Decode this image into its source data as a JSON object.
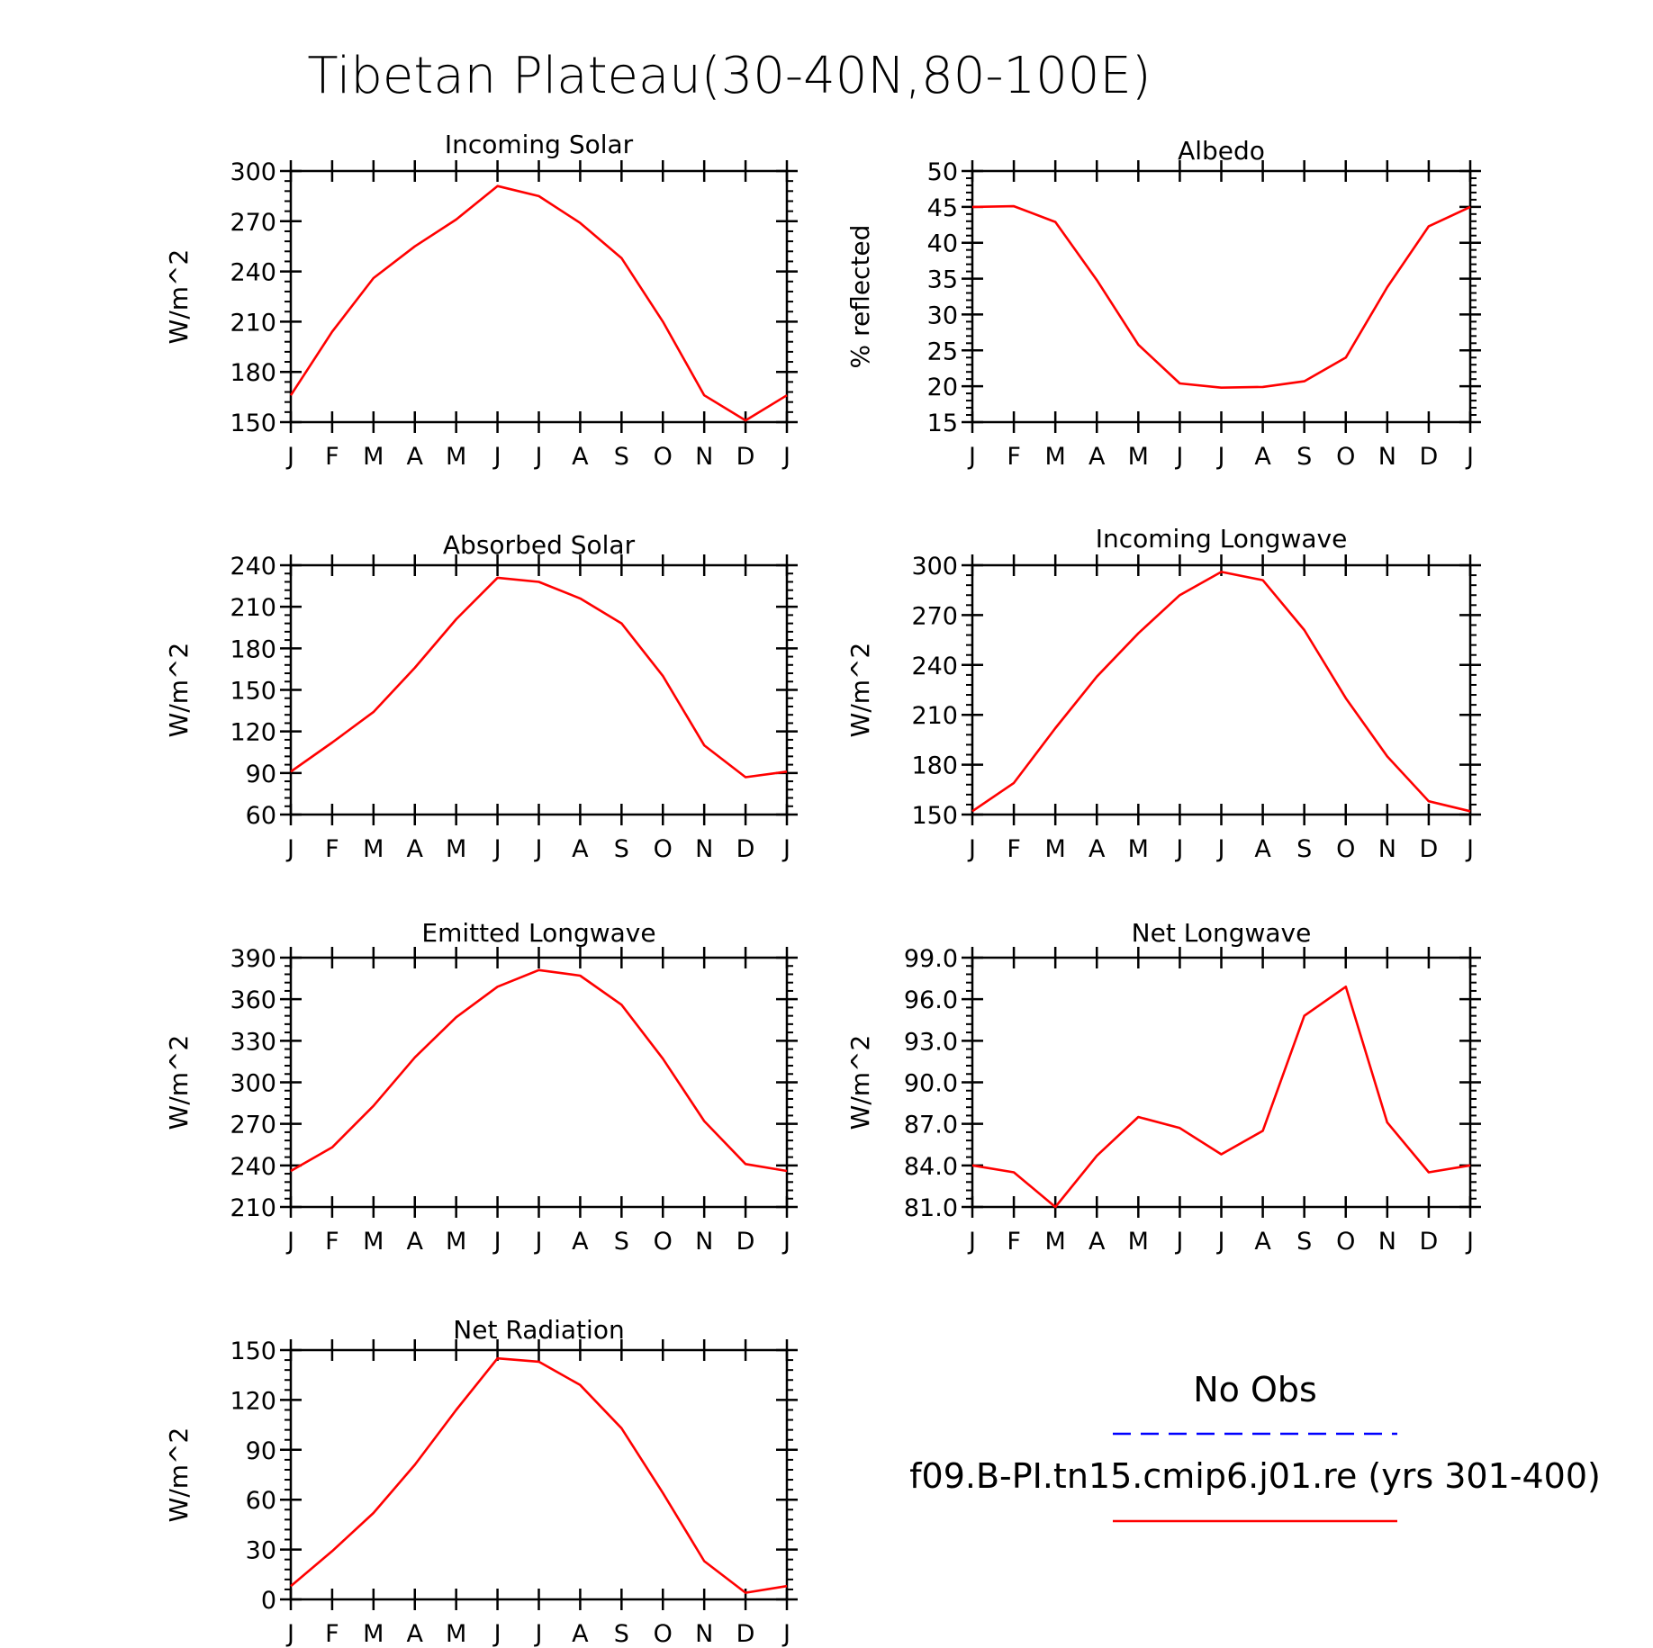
{
  "figure_title": "Tibetan Plateau(30-40N,80-100E)",
  "legend": {
    "obs_label": "No Obs",
    "obs_color": "#0000ff",
    "model_label": "f09.B-PI.tn15.cmip6.j01.re (yrs 301-400)",
    "model_color": "#ff0000"
  },
  "chart_data": [
    {
      "type": "line",
      "title": "Incoming Solar",
      "ylabel": "W/m^2",
      "categories": [
        "J",
        "F",
        "M",
        "A",
        "M",
        "J",
        "J",
        "A",
        "S",
        "O",
        "N",
        "D",
        "J"
      ],
      "ylim": [
        150,
        300
      ],
      "yticks": [
        "150",
        "180",
        "210",
        "240",
        "270",
        "300"
      ],
      "series": [
        {
          "values": [
            166,
            204,
            236,
            255,
            271,
            291,
            285,
            269,
            248,
            210,
            166,
            151,
            166
          ]
        }
      ]
    },
    {
      "type": "line",
      "title": "Albedo",
      "ylabel": "% reflected",
      "categories": [
        "J",
        "F",
        "M",
        "A",
        "M",
        "J",
        "J",
        "A",
        "S",
        "O",
        "N",
        "D",
        "J"
      ],
      "ylim": [
        15,
        50
      ],
      "yticks": [
        "15",
        "20",
        "25",
        "30",
        "35",
        "40",
        "45",
        "50"
      ],
      "series": [
        {
          "values": [
            45.0,
            45.1,
            42.9,
            34.8,
            25.8,
            20.4,
            19.8,
            19.9,
            20.7,
            24.0,
            33.8,
            42.3,
            45.0
          ]
        }
      ]
    },
    {
      "type": "line",
      "title": "Absorbed Solar",
      "ylabel": "W/m^2",
      "categories": [
        "J",
        "F",
        "M",
        "A",
        "M",
        "J",
        "J",
        "A",
        "S",
        "O",
        "N",
        "D",
        "J"
      ],
      "ylim": [
        60,
        240
      ],
      "yticks": [
        "60",
        "90",
        "120",
        "150",
        "180",
        "210",
        "240"
      ],
      "series": [
        {
          "values": [
            91,
            112,
            134,
            166,
            201,
            231,
            228,
            216,
            198,
            160,
            110,
            87,
            91
          ]
        }
      ]
    },
    {
      "type": "line",
      "title": "Incoming Longwave",
      "ylabel": "W/m^2",
      "categories": [
        "J",
        "F",
        "M",
        "A",
        "M",
        "J",
        "J",
        "A",
        "S",
        "O",
        "N",
        "D",
        "J"
      ],
      "ylim": [
        150,
        300
      ],
      "yticks": [
        "150",
        "180",
        "210",
        "240",
        "270",
        "300"
      ],
      "series": [
        {
          "values": [
            152,
            169,
            202,
            233,
            259,
            282,
            296,
            291,
            261,
            220,
            185,
            158,
            152
          ]
        }
      ]
    },
    {
      "type": "line",
      "title": "Emitted Longwave",
      "ylabel": "W/m^2",
      "categories": [
        "J",
        "F",
        "M",
        "A",
        "M",
        "J",
        "J",
        "A",
        "S",
        "O",
        "N",
        "D",
        "J"
      ],
      "ylim": [
        210,
        390
      ],
      "yticks": [
        "210",
        "240",
        "270",
        "300",
        "330",
        "360",
        "390"
      ],
      "series": [
        {
          "values": [
            236,
            253,
            283,
            318,
            347,
            369,
            381,
            377,
            356,
            317,
            272,
            241,
            236
          ]
        }
      ]
    },
    {
      "type": "line",
      "title": "Net Longwave",
      "ylabel": "W/m^2",
      "categories": [
        "J",
        "F",
        "M",
        "A",
        "M",
        "J",
        "J",
        "A",
        "S",
        "O",
        "N",
        "D",
        "J"
      ],
      "ylim": [
        81,
        99
      ],
      "yticks": [
        "81.0",
        "84.0",
        "87.0",
        "90.0",
        "93.0",
        "96.0",
        "99.0"
      ],
      "series": [
        {
          "values": [
            84.0,
            83.5,
            81.0,
            84.7,
            87.5,
            86.7,
            84.8,
            86.5,
            94.8,
            96.9,
            87.1,
            83.5,
            84.0
          ]
        }
      ]
    },
    {
      "type": "line",
      "title": "Net Radiation",
      "ylabel": "W/m^2",
      "categories": [
        "J",
        "F",
        "M",
        "A",
        "M",
        "J",
        "J",
        "A",
        "S",
        "O",
        "N",
        "D",
        "J"
      ],
      "ylim": [
        0,
        150
      ],
      "yticks": [
        "0",
        "30",
        "60",
        "90",
        "120",
        "150"
      ],
      "series": [
        {
          "values": [
            8,
            29,
            52,
            81,
            114,
            145,
            143,
            129,
            103,
            64,
            23,
            4,
            8
          ]
        }
      ]
    }
  ]
}
